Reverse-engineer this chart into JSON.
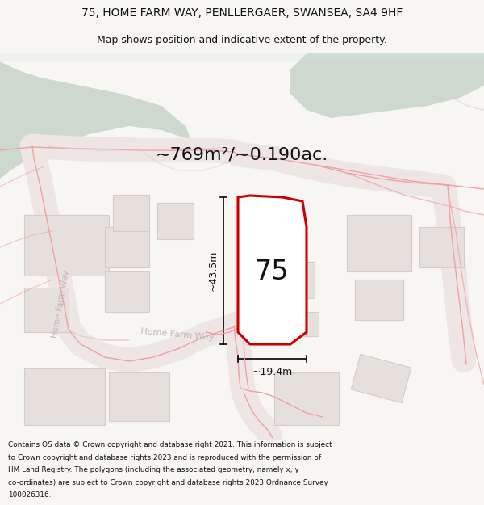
{
  "title_line1": "75, HOME FARM WAY, PENLLERGAER, SWANSEA, SA4 9HF",
  "title_line2": "Map shows position and indicative extent of the property.",
  "area_text": "~769m²/~0.190ac.",
  "property_number": "75",
  "dim_vertical": "~43.5m",
  "dim_horizontal": "~19.4m",
  "road_label_diag": "Home Farm Way",
  "road_label_vert": "Home Farm Way",
  "footer_lines": [
    "Contains OS data © Crown copyright and database right 2021. This information is subject",
    "to Crown copyright and database rights 2023 and is reproduced with the permission of",
    "HM Land Registry. The polygons (including the associated geometry, namely x, y",
    "co-ordinates) are subject to Crown copyright and database rights 2023 Ordnance Survey",
    "100026316."
  ],
  "bg_color": "#f7f6f2",
  "map_bg": "#ffffff",
  "green_color": "#ccd9cc",
  "property_fill": "#ffffff",
  "property_edge": "#cc0000",
  "building_fill": "#e6e0dc",
  "building_edge": "#d4ccca",
  "road_fill": "#f0e8e8",
  "boundary_color": "#f0a0a0",
  "road_gray": "#d8d0d0",
  "dim_color": "#000000",
  "text_dark": "#111111",
  "text_gray": "#aaaaaa"
}
